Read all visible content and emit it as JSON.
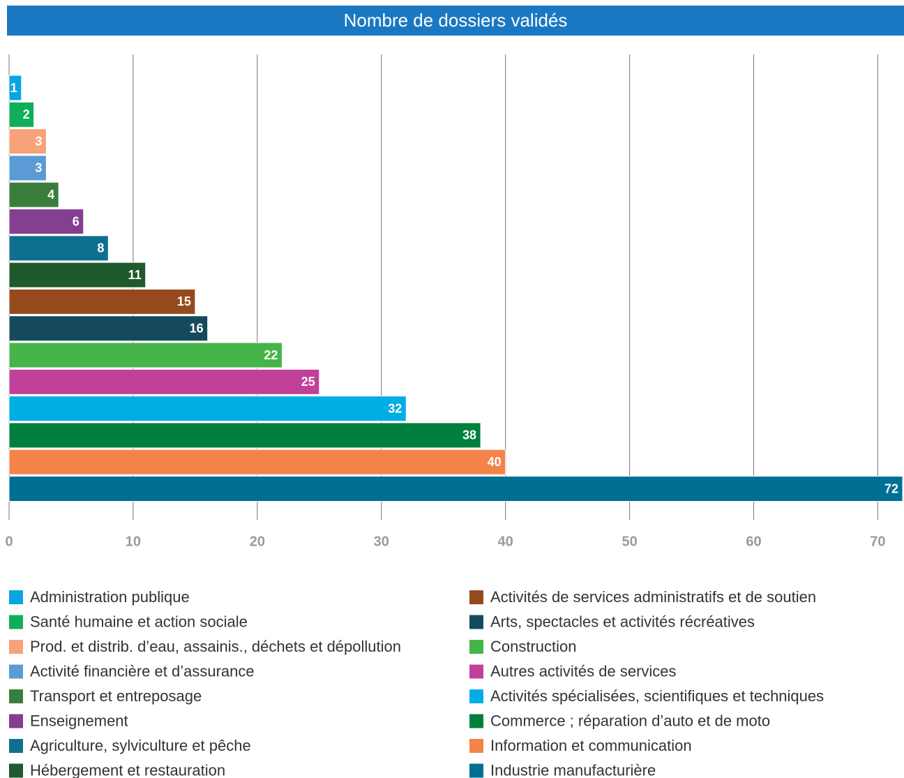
{
  "chart_data": {
    "type": "bar",
    "orientation": "horizontal",
    "title": "Nombre de dossiers validés",
    "categories": [
      "Administration publique",
      "Santé humaine et action sociale",
      "Prod. et distrib. d’eau, assainis., déchets et dépollution",
      "Activité financière et d’assurance",
      "Transport et entreposage",
      "Enseignement",
      "Agriculture, sylviculture et pêche",
      "Hébergement et restauration",
      "Activités de services administratifs et de soutien",
      "Arts, spectacles et activités récréatives",
      "Construction",
      "Autres activités de services",
      "Activités spécialisées, scientifiques et techniques",
      "Commerce ; réparation d’auto et de moto",
      "Information et communication",
      "Industrie manufacturière"
    ],
    "values": [
      1,
      2,
      3,
      3,
      4,
      6,
      8,
      11,
      15,
      16,
      22,
      25,
      32,
      38,
      40,
      72
    ],
    "colors": [
      "#0aa5e0",
      "#0fae5a",
      "#f7a27a",
      "#5b9bd5",
      "#3a7d3c",
      "#853f91",
      "#0f6f8f",
      "#1e5a2c",
      "#954a1e",
      "#154a5e",
      "#46b549",
      "#c0409a",
      "#00aee6",
      "#00803c",
      "#f4834a",
      "#006f94"
    ],
    "xlim": [
      0,
      72
    ],
    "xticks": [
      0,
      10,
      20,
      30,
      40,
      50,
      60,
      70
    ],
    "grid": true
  }
}
